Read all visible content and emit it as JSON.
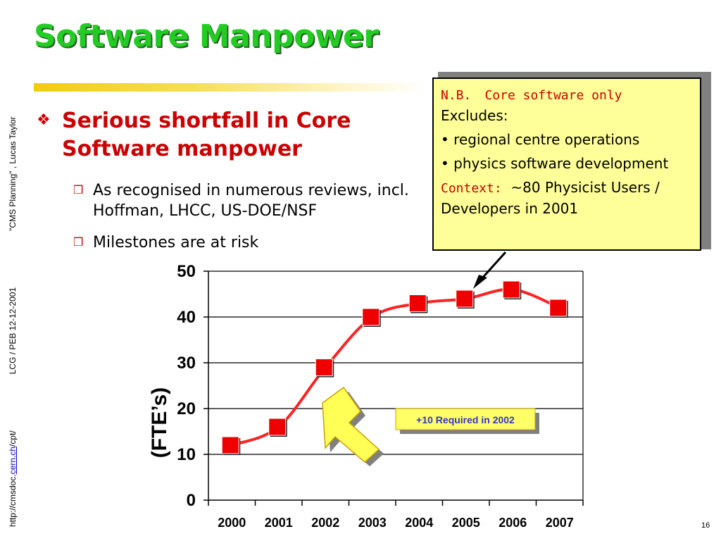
{
  "slide": {
    "title": "Software Manpower",
    "page_number": "16",
    "side_footer": {
      "link_prefix": "http://cmsdoc.",
      "link_text": "cern.ch",
      "link_suffix": "/cpt/",
      "event": "LCG  / PEB  12-12-2001",
      "talk": "\"CMS Planning\" ,  Lucas Taylor"
    }
  },
  "bullets": {
    "main": "Serious shortfall in Core Software manpower",
    "main_icon": "diamond-bullet-icon",
    "sub_icon": "box-bullet-icon",
    "subs": [
      "As recognised in numerous reviews, incl. Hoffman, LHCC, US-DOE/NSF",
      "Milestones are at risk"
    ]
  },
  "note": {
    "nb_label": "N.B.",
    "nb_text": "Core software only",
    "excludes": "Excludes:",
    "items": [
      "• regional centre operations",
      "• physics software development"
    ],
    "context_label": "Context:",
    "context_text": "~80 Physicist Users / Developers in 2001"
  },
  "callout": {
    "text": "+10 Required in 2002",
    "arrow_icon": "yellow-arrow-icon"
  },
  "colors": {
    "title": "#22cc22",
    "accent_red": "#cc0000",
    "line": "#ff2222",
    "marker": "#ee0000",
    "note_bg": "#ffff99",
    "callout_text": "#3333cc"
  },
  "chart_data": {
    "type": "line",
    "categories": [
      "2000",
      "2001",
      "2002",
      "2003",
      "2004",
      "2005",
      "2006",
      "2007"
    ],
    "series": [
      {
        "values": [
          12,
          16,
          29,
          40,
          43,
          44,
          46,
          42
        ]
      }
    ],
    "ylabel": "(FTE’s)",
    "xlabel": "",
    "ylim": [
      0,
      50
    ],
    "yticks": [
      "0",
      "10",
      "20",
      "30",
      "40",
      "50"
    ],
    "grid": true
  }
}
